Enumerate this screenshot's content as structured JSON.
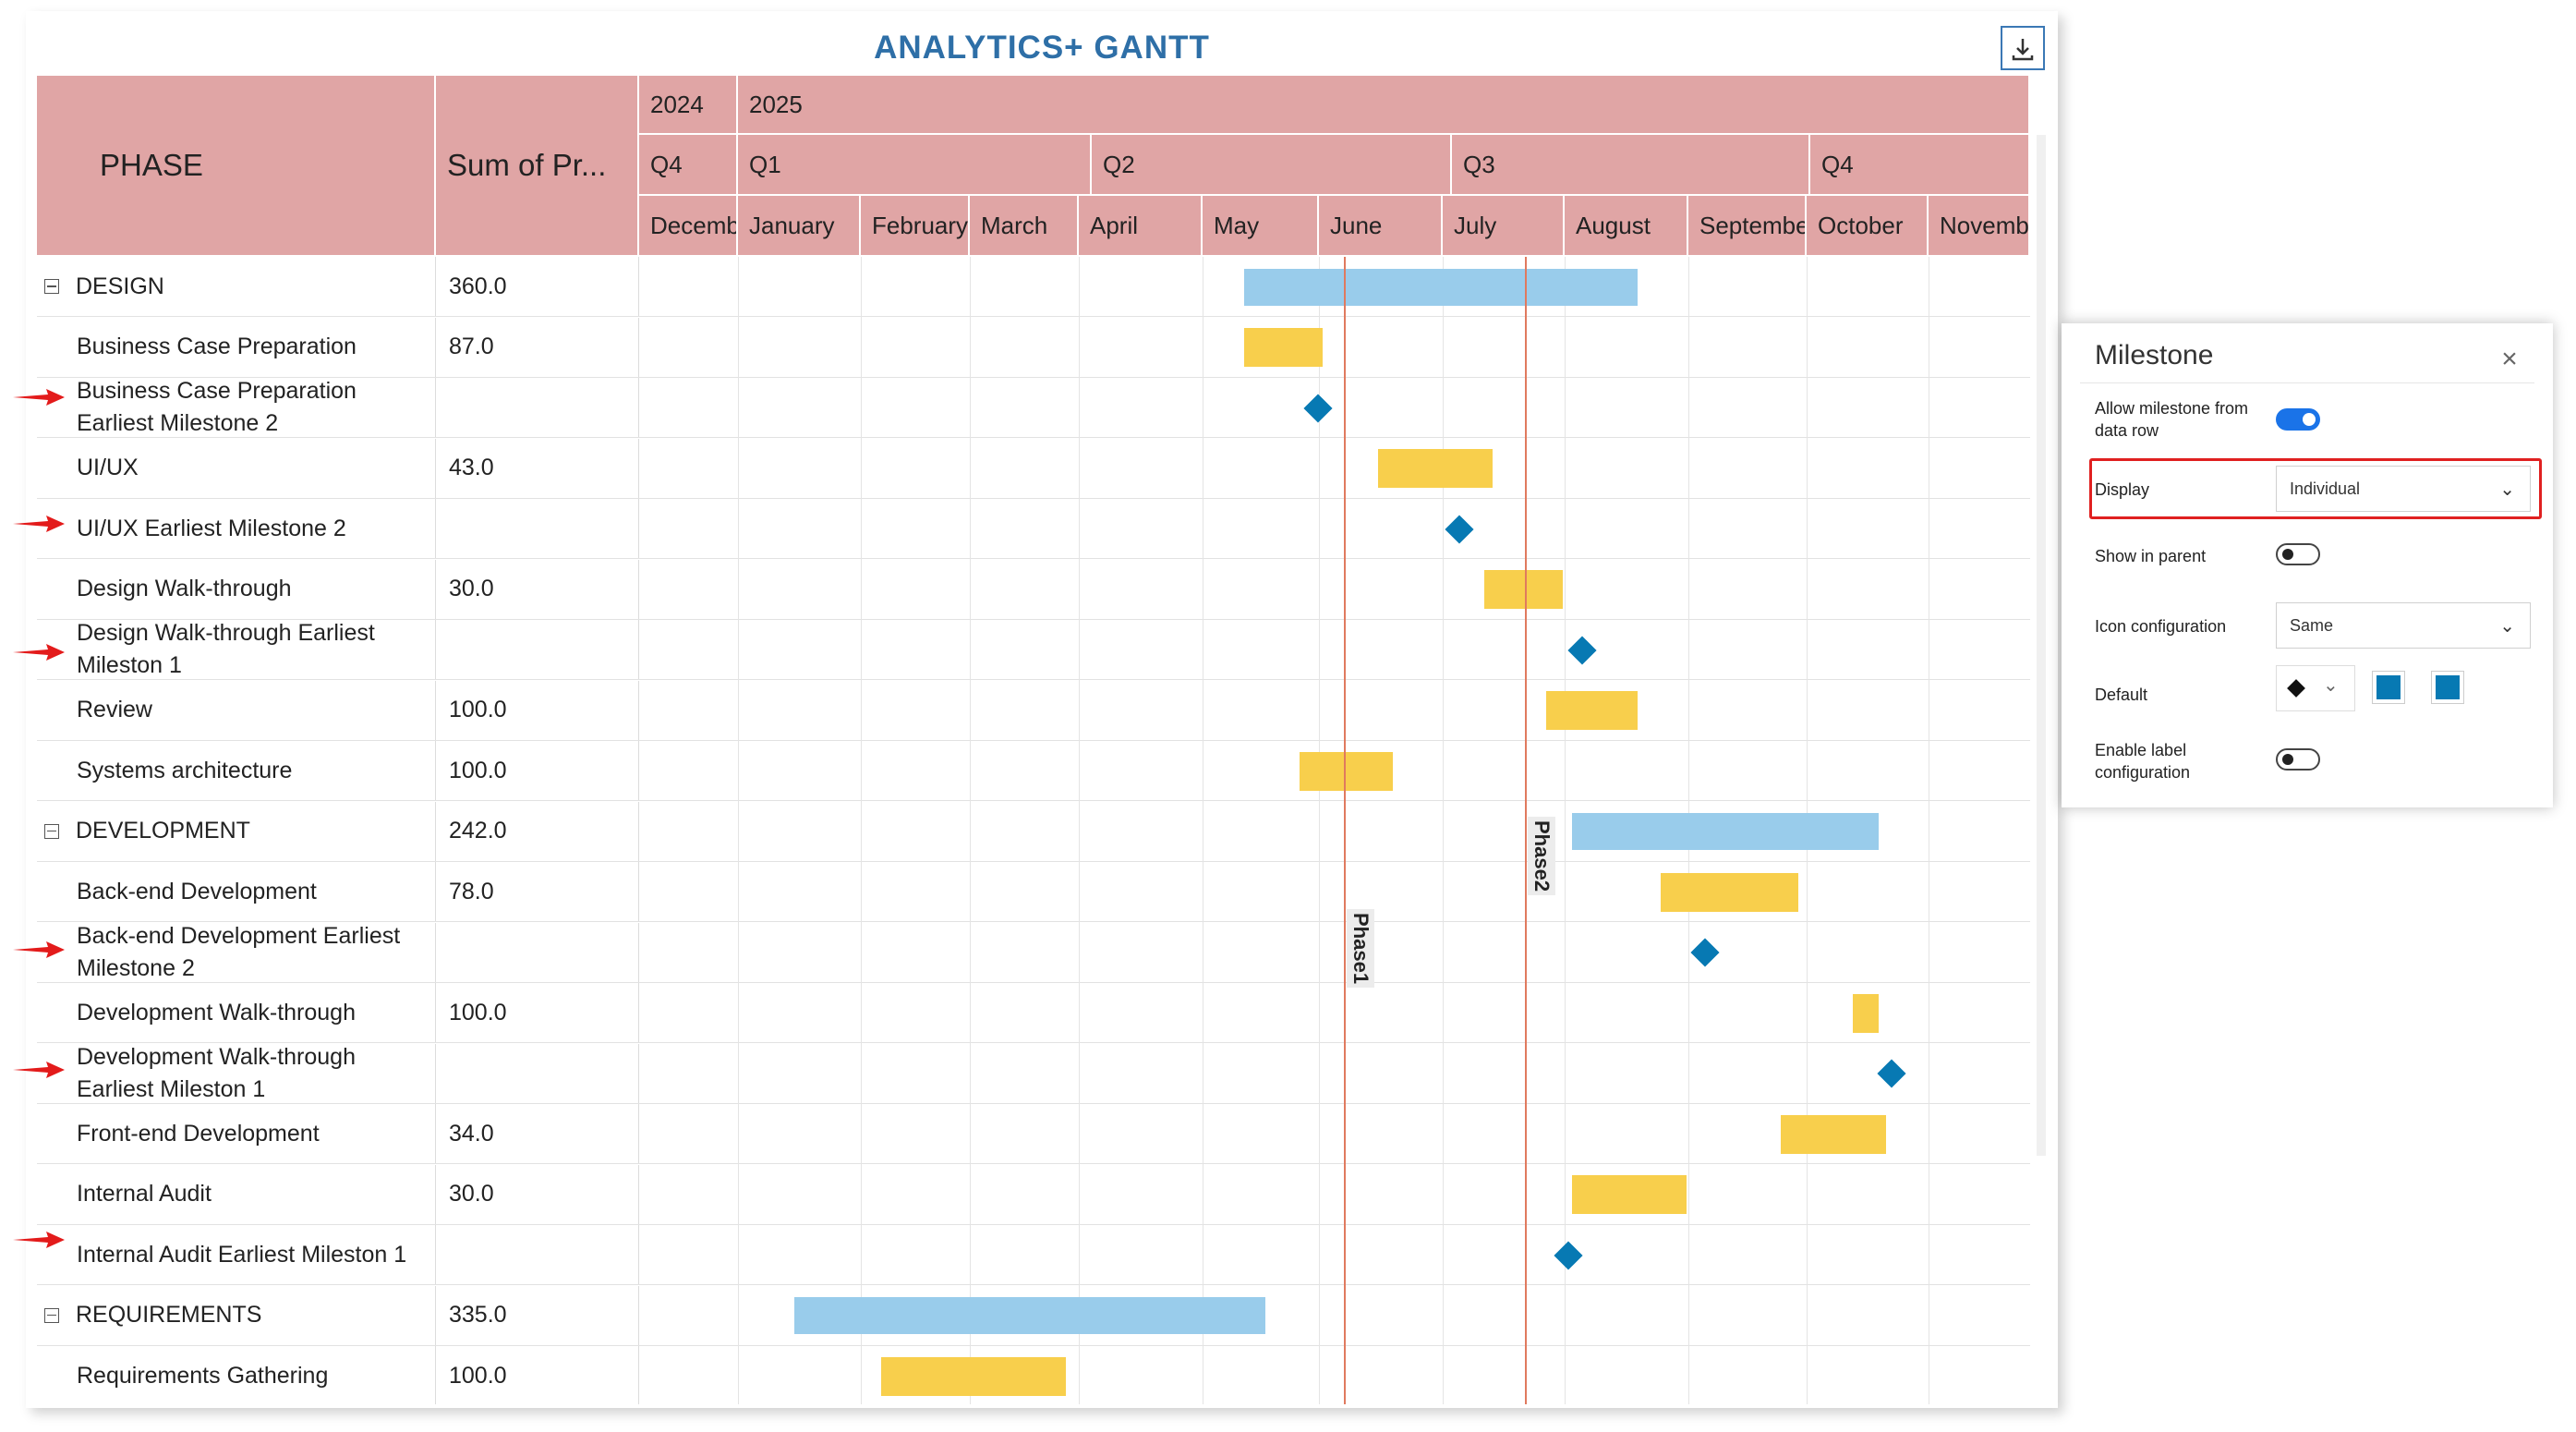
{
  "title": "ANALYTICS+ GANTT",
  "columns": {
    "phase": "PHASE",
    "sum": "Sum of Pr..."
  },
  "timeline": {
    "years": [
      "2024",
      "2025"
    ],
    "quarters": [
      "Q4",
      "Q1",
      "Q2",
      "Q3",
      "Q4"
    ],
    "months": [
      "Decemb",
      "January",
      "February",
      "March",
      "April",
      "May",
      "June",
      "July",
      "August",
      "Septembe",
      "October",
      "Novemb"
    ]
  },
  "rows": [
    {
      "name": "DESIGN",
      "sum": "360.0",
      "group": true
    },
    {
      "name": "Business Case Preparation",
      "sum": "87.0"
    },
    {
      "name": "Business Case Preparation Earliest Milestone 2",
      "sum": "",
      "milestone": true
    },
    {
      "name": "UI/UX",
      "sum": "43.0"
    },
    {
      "name": "UI/UX Earliest Milestone 2",
      "sum": "",
      "milestone": true
    },
    {
      "name": "Design Walk-through",
      "sum": "30.0"
    },
    {
      "name": "Design Walk-through Earliest Mileston 1",
      "sum": "",
      "milestone": true
    },
    {
      "name": "Review",
      "sum": "100.0"
    },
    {
      "name": "Systems architecture",
      "sum": "100.0"
    },
    {
      "name": "DEVELOPMENT",
      "sum": "242.0",
      "group": true
    },
    {
      "name": "Back-end Development",
      "sum": "78.0"
    },
    {
      "name": "Back-end Development Earliest Milestone 2",
      "sum": "",
      "milestone": true
    },
    {
      "name": "Development Walk-through",
      "sum": "100.0"
    },
    {
      "name": "Development Walk-through Earliest Mileston 1",
      "sum": "",
      "milestone": true
    },
    {
      "name": "Front-end Development",
      "sum": "34.0"
    },
    {
      "name": "Internal Audit",
      "sum": "30.0"
    },
    {
      "name": "Internal Audit Earliest Mileston 1",
      "sum": "",
      "milestone": true
    },
    {
      "name": "REQUIREMENTS",
      "sum": "335.0",
      "group": true
    },
    {
      "name": "Requirements Gathering",
      "sum": "100.0"
    }
  ],
  "phase_markers": [
    "Phase1",
    "Phase2"
  ],
  "panel": {
    "title": "Milestone",
    "allow_label": "Allow milestone from data row",
    "display_label": "Display",
    "display_value": "Individual",
    "show_parent_label": "Show in parent",
    "icon_config_label": "Icon configuration",
    "icon_config_value": "Same",
    "default_label": "Default",
    "enable_label": "Enable label configuration",
    "allow_on": true,
    "show_parent_on": false,
    "enable_label_on": false
  },
  "colors": {
    "header": "#e0a5a5",
    "parent_bar": "#99cceb",
    "task_bar": "#f8cf4c",
    "milestone": "#0779b3",
    "phase_line": "#e07a5f",
    "title": "#2e6fa7"
  }
}
